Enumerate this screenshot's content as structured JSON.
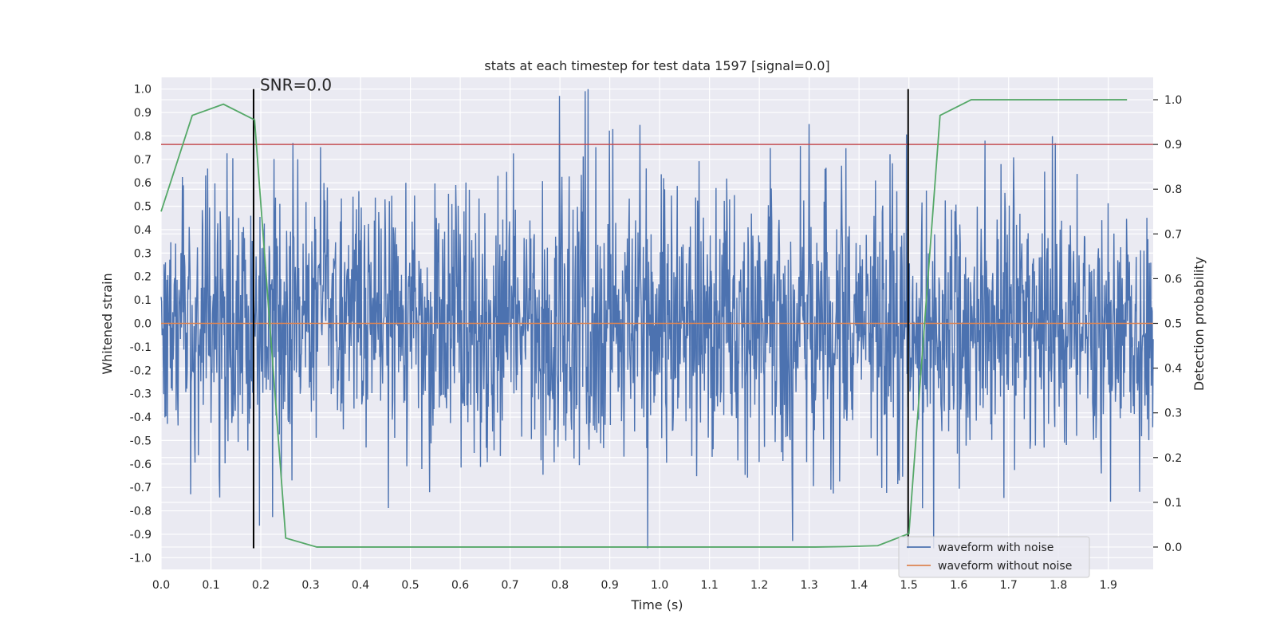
{
  "chart_data": {
    "type": "line",
    "title": "stats at each timestep for test data 1597 [signal=0.0]",
    "xlabel": "Time (s)",
    "ylabel": "Whitened strain",
    "y2label": "Detection probability",
    "xlim": [
      0.0,
      1.99
    ],
    "ylim": [
      -1.05,
      1.05
    ],
    "y2lim": [
      -0.05,
      1.05
    ],
    "xticks": [
      "0.0",
      "0.1",
      "0.2",
      "0.3",
      "0.4",
      "0.5",
      "0.6",
      "0.7",
      "0.8",
      "0.9",
      "1.0",
      "1.1",
      "1.2",
      "1.3",
      "1.4",
      "1.5",
      "1.6",
      "1.7",
      "1.8",
      "1.9"
    ],
    "xtick_values": [
      0.0,
      0.1,
      0.2,
      0.3,
      0.4,
      0.5,
      0.6,
      0.7,
      0.8,
      0.9,
      1.0,
      1.1,
      1.2,
      1.3,
      1.4,
      1.5,
      1.6,
      1.7,
      1.8,
      1.9
    ],
    "yticks": [
      "1.0",
      "0.9",
      "0.8",
      "0.7",
      "0.6",
      "0.5",
      "0.4",
      "0.3",
      "0.2",
      "0.1",
      "0.0",
      "-0.1",
      "-0.2",
      "-0.3",
      "-0.4",
      "-0.5",
      "-0.6",
      "-0.7",
      "-0.8",
      "-0.9",
      "-1.0"
    ],
    "ytick_values": [
      1.0,
      0.9,
      0.8,
      0.7,
      0.6,
      0.5,
      0.4,
      0.3,
      0.2,
      0.1,
      0.0,
      -0.1,
      -0.2,
      -0.3,
      -0.4,
      -0.5,
      -0.6,
      -0.7,
      -0.8,
      -0.9,
      -1.0
    ],
    "y2ticks": [
      "1.0",
      "0.9",
      "0.8",
      "0.7",
      "0.6",
      "0.5",
      "0.4",
      "0.3",
      "0.2",
      "0.1",
      "0.0"
    ],
    "y2tick_values": [
      1.0,
      0.9,
      0.8,
      0.7,
      0.6,
      0.5,
      0.4,
      0.3,
      0.2,
      0.1,
      0.0
    ],
    "noise_series": {
      "name": "waveform with noise",
      "color": "#4c72b0",
      "x_start": 0.0,
      "x_end": 1.99,
      "n_points": 2048,
      "typical_amplitude": 0.3,
      "max_abs": 1.0
    },
    "clean_series": {
      "name": "waveform without noise",
      "color": "#dd8452",
      "x": [
        0.0,
        1.99
      ],
      "y": [
        0.0,
        0.0
      ]
    },
    "probability_series": {
      "name": "detection probability",
      "color": "#55a868",
      "x": [
        0.0,
        0.0625,
        0.125,
        0.1875,
        0.25,
        0.3125,
        0.375,
        0.4375,
        0.5,
        0.5625,
        0.625,
        0.6875,
        0.75,
        0.8125,
        0.875,
        0.9375,
        1.0,
        1.0625,
        1.125,
        1.1875,
        1.25,
        1.3125,
        1.375,
        1.4375,
        1.5,
        1.5625,
        1.625,
        1.6875,
        1.75,
        1.8125,
        1.875,
        1.9375
      ],
      "y": [
        0.75,
        0.965,
        0.99,
        0.955,
        0.02,
        0.0,
        0.0,
        0.0,
        0.0,
        0.0,
        0.0,
        0.0,
        0.0,
        0.0,
        0.0,
        0.0,
        0.0,
        0.0,
        0.0,
        0.0,
        0.0,
        0.0,
        0.001,
        0.003,
        0.03,
        0.965,
        1.0,
        1.0,
        1.0,
        1.0,
        1.0,
        1.0
      ]
    },
    "threshold": {
      "y2": 0.9,
      "color": "#c44e52"
    },
    "event_markers": [
      {
        "x": 0.1855,
        "label": "SNR=0.0"
      },
      {
        "x": 1.4985,
        "label": ""
      }
    ],
    "legend": {
      "position": "lower-right",
      "entries": [
        "waveform with noise",
        "waveform without noise"
      ]
    },
    "grid": true
  }
}
